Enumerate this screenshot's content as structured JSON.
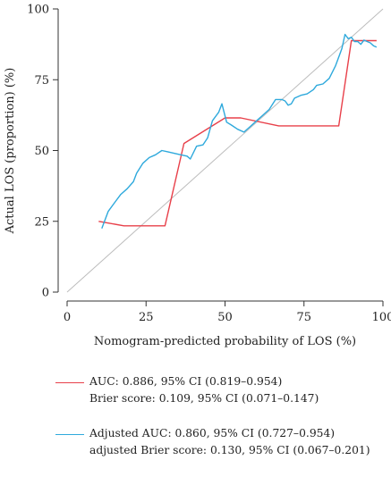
{
  "chart_data": {
    "type": "line",
    "title": "",
    "xlabel": "Nomogram-predicted probability of LOS (%)",
    "ylabel": "Actual LOS (proportion) (%)",
    "xlim": [
      0,
      100
    ],
    "ylim": [
      0,
      100
    ],
    "x_ticks": [
      "0",
      "25",
      "50",
      "75",
      "100"
    ],
    "y_ticks": [
      "0",
      "25",
      "50",
      "75",
      "100"
    ],
    "grid": false,
    "reference_line": {
      "x": [
        0,
        100
      ],
      "y": [
        0,
        100
      ],
      "color": "#bdbdbd"
    },
    "series": [
      {
        "name": "AUC",
        "color": "#e8404a",
        "x": [
          10,
          18,
          31,
          37,
          50,
          55,
          67,
          86,
          90,
          98
        ],
        "y": [
          25,
          23.4,
          23.4,
          52.5,
          61.5,
          61.5,
          58.7,
          58.7,
          88.8,
          88.8
        ]
      },
      {
        "name": "Adjusted AUC",
        "color": "#2ea9dc",
        "x": [
          11,
          13,
          15,
          17,
          19,
          21,
          22,
          24,
          26,
          28,
          30,
          32,
          34,
          36,
          38,
          39,
          41,
          43,
          44.5,
          46,
          48,
          49,
          50.5,
          52,
          54,
          56,
          58,
          60,
          62,
          64,
          66,
          67,
          68,
          69,
          70,
          71,
          72,
          74,
          76,
          78,
          79,
          81,
          83,
          85,
          87,
          88,
          89,
          90,
          91,
          92,
          93,
          94,
          95,
          96,
          97,
          98
        ],
        "y": [
          22.5,
          28.5,
          31.5,
          34.5,
          36.5,
          39,
          42,
          45.5,
          47.5,
          48.5,
          50,
          49.5,
          49,
          48.5,
          48,
          47,
          51.5,
          52,
          54.5,
          60.5,
          63.5,
          66.5,
          60,
          59,
          57.5,
          56.5,
          58.5,
          60.5,
          62.5,
          64.5,
          68,
          68,
          68,
          67.5,
          66,
          66.5,
          68.5,
          69.5,
          70,
          71.5,
          73,
          73.5,
          75.5,
          80,
          86,
          91,
          89.5,
          90,
          88.5,
          88.5,
          87.5,
          89,
          88.5,
          88,
          87,
          86.5
        ]
      }
    ],
    "legend": {
      "placement": "bottom-left",
      "entries": [
        {
          "lines": [
            "AUC: 0.886, 95% CI (0.819–0.954)",
            "Brier score: 0.109, 95% CI (0.071–0.147)"
          ],
          "color": "#e8404a"
        },
        {
          "lines": [
            "Adjusted AUC: 0.860, 95% CI (0.727–0.954)",
            "adjusted Brier score: 0.130, 95% CI (0.067–0.201)"
          ],
          "color": "#2ea9dc"
        }
      ]
    }
  }
}
